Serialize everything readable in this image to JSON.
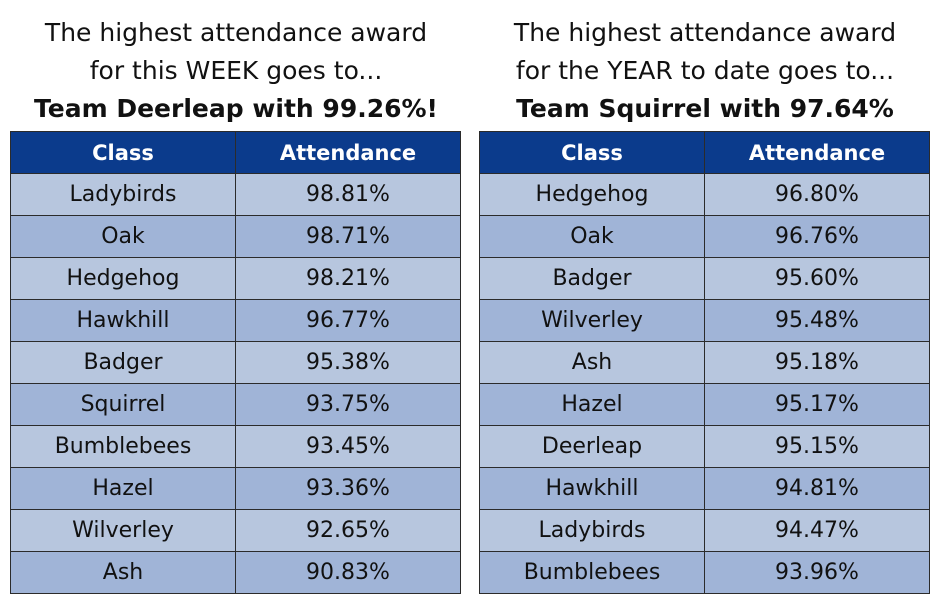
{
  "week": {
    "line1": "The highest attendance award",
    "line2": "for this WEEK goes to...",
    "winner": "Team Deerleap with 99.26%!",
    "headers": [
      "Class",
      "Attendance"
    ],
    "rows": [
      [
        "Ladybirds",
        "98.81%"
      ],
      [
        "Oak",
        "98.71%"
      ],
      [
        "Hedgehog",
        "98.21%"
      ],
      [
        "Hawkhill",
        "96.77%"
      ],
      [
        "Badger",
        "95.38%"
      ],
      [
        "Squirrel",
        "93.75%"
      ],
      [
        "Bumblebees",
        "93.45%"
      ],
      [
        "Hazel",
        "93.36%"
      ],
      [
        "Wilverley",
        "92.65%"
      ],
      [
        "Ash",
        "90.83%"
      ]
    ]
  },
  "year": {
    "line1": "The highest attendance award",
    "line2": "for the YEAR to date goes to...",
    "winner": "Team Squirrel with 97.64%",
    "headers": [
      "Class",
      "Attendance"
    ],
    "rows": [
      [
        "Hedgehog",
        "96.80%"
      ],
      [
        "Oak",
        "96.76%"
      ],
      [
        "Badger",
        "95.60%"
      ],
      [
        "Wilverley",
        "95.48%"
      ],
      [
        "Ash",
        "95.18%"
      ],
      [
        "Hazel",
        "95.17%"
      ],
      [
        "Deerleap",
        "95.15%"
      ],
      [
        "Hawkhill",
        "94.81%"
      ],
      [
        "Ladybirds",
        "94.47%"
      ],
      [
        "Bumblebees",
        "93.96%"
      ]
    ]
  },
  "colors": {
    "header_bg": "#0b3b8c",
    "row_light": "#b7c6de",
    "row_dark": "#a0b4d7"
  }
}
